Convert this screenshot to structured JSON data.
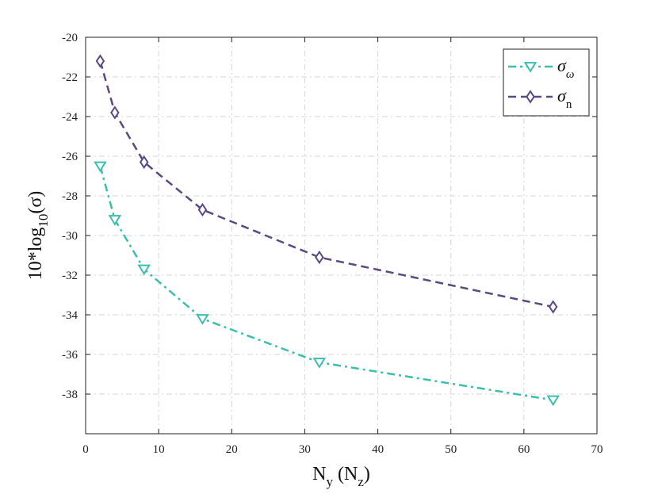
{
  "chart_data": {
    "type": "line",
    "xlabel": {
      "main": "N",
      "sub1": "y",
      "paren_open": " (N",
      "sub2": "z",
      "paren_close": ")"
    },
    "ylabel": {
      "main": "10*log",
      "sub": "10",
      "rest": "(σ)"
    },
    "xlim": [
      0,
      70
    ],
    "ylim": [
      -40,
      -20
    ],
    "xticks": [
      0,
      10,
      20,
      30,
      40,
      50,
      60,
      70
    ],
    "yticks": [
      -20,
      -22,
      -24,
      -26,
      -28,
      -30,
      -32,
      -34,
      -36,
      -38
    ],
    "grid": true,
    "legend_position": "top-right",
    "series": [
      {
        "name": "σ",
        "name_sub": "ω",
        "color": "#3bbfad",
        "line_style": "dash-dot",
        "marker": "triangle-down",
        "x": [
          2,
          4,
          8,
          16,
          32,
          64
        ],
        "y": [
          -26.5,
          -29.2,
          -31.7,
          -34.2,
          -36.4,
          -38.3
        ]
      },
      {
        "name": "σ",
        "name_sub": "n",
        "color": "#5b4a7f",
        "line_style": "dashed",
        "marker": "diamond",
        "x": [
          2,
          4,
          8,
          16,
          32,
          64
        ],
        "y": [
          -21.2,
          -23.8,
          -26.3,
          -28.7,
          -31.1,
          -33.6
        ]
      }
    ]
  }
}
